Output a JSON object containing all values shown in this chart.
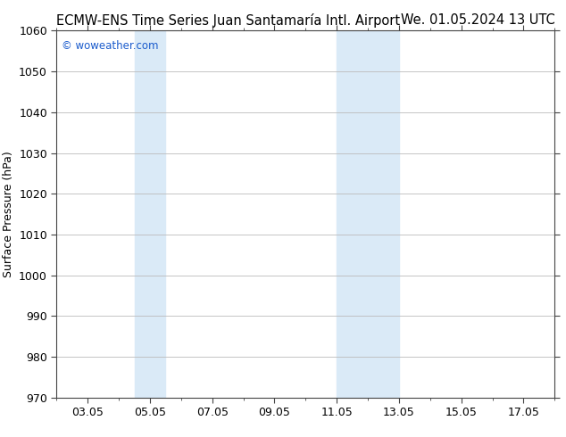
{
  "title_left": "ECMW-ENS Time Series Juan Santamaría Intl. Airport",
  "title_right": "We. 01.05.2024 13 UTC",
  "ylabel": "Surface Pressure (hPa)",
  "watermark": "© woweather.com",
  "watermark_color": "#1a5bcc",
  "ylim": [
    970,
    1060
  ],
  "yticks": [
    970,
    980,
    990,
    1000,
    1010,
    1020,
    1030,
    1040,
    1050,
    1060
  ],
  "xtick_labels": [
    "03.05",
    "05.05",
    "07.05",
    "09.05",
    "11.05",
    "13.05",
    "15.05",
    "17.05"
  ],
  "xtick_positions": [
    3,
    5,
    7,
    9,
    11,
    13,
    15,
    17
  ],
  "xlim": [
    2.0,
    18.0
  ],
  "shaded_bands": [
    {
      "x_start": 4.5,
      "x_end": 5.5,
      "color": "#daeaf7"
    },
    {
      "x_start": 11.0,
      "x_end": 13.0,
      "color": "#daeaf7"
    }
  ],
  "bg_color": "#ffffff",
  "plot_bg_color": "#ffffff",
  "grid_color": "#bbbbbb",
  "title_fontsize": 10.5,
  "tick_fontsize": 9,
  "ylabel_fontsize": 9,
  "spine_color": "#444444"
}
